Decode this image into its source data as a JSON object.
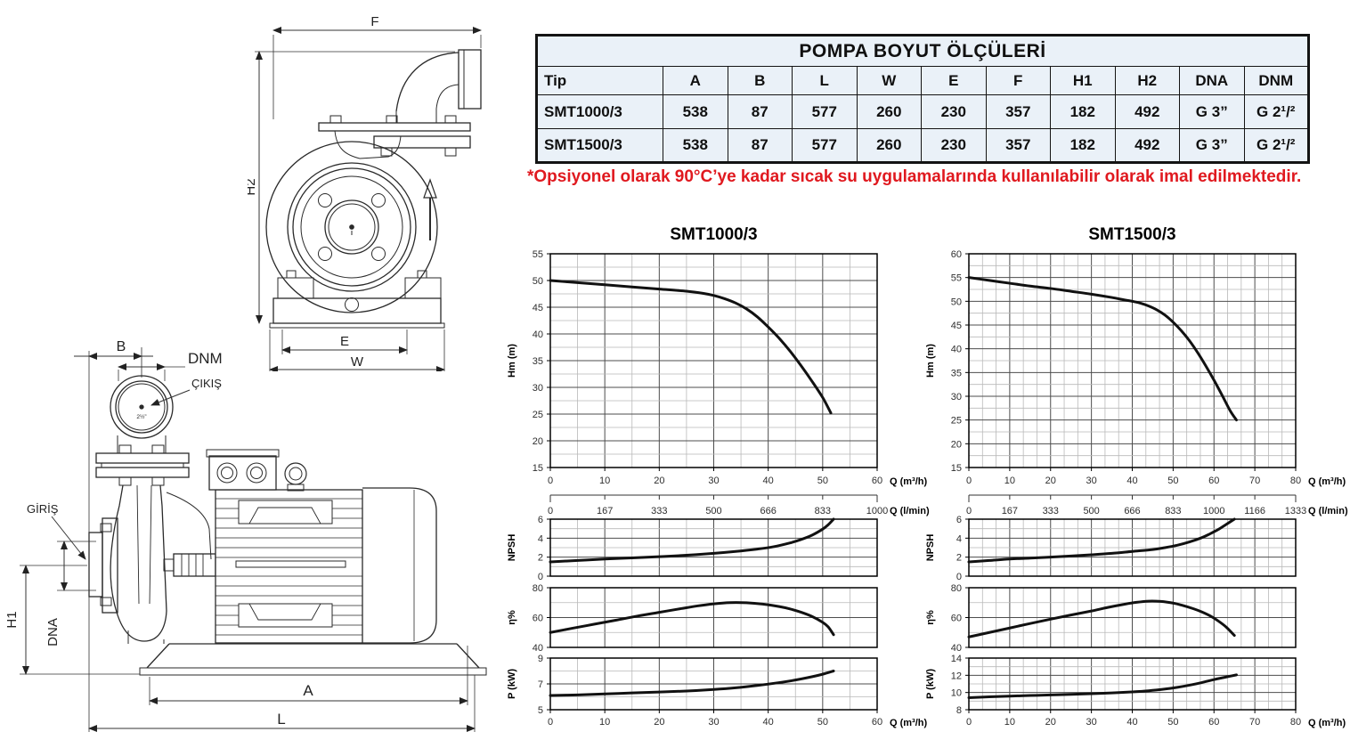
{
  "colors": {
    "ink": "#1a1a1a",
    "curve": "#111111",
    "grid_major": "#4d4d4d",
    "grid_minor": "#b9b9b9",
    "note_red": "#e0191f",
    "table_bg": "#eaf1f8"
  },
  "table": {
    "title": "POMPA BOYUT ÖLÇÜLERİ",
    "columns": [
      "Tip",
      "A",
      "B",
      "L",
      "W",
      "E",
      "F",
      "H1",
      "H2",
      "DNA",
      "DNM"
    ],
    "rows": [
      [
        "SMT1000/3",
        "538",
        "87",
        "577",
        "260",
        "230",
        "357",
        "182",
        "492",
        "G 3”",
        "G 2¹/²"
      ],
      [
        "SMT1500/3",
        "538",
        "87",
        "577",
        "260",
        "230",
        "357",
        "182",
        "492",
        "G 3”",
        "G 2¹/²"
      ]
    ]
  },
  "note": "*Opsiyonel olarak 90°C’ye kadar sıcak su uygulamalarında kullanılabilir olarak imal edilmektedir.",
  "drawing": {
    "front": {
      "f": "F",
      "h2": "H2",
      "e": "E",
      "w": "W"
    },
    "side": {
      "b": "B",
      "dnm": "DNM",
      "cikis": "ÇIKIŞ",
      "giris": "GİRİŞ",
      "h1": "H1",
      "dna": "DNA",
      "a": "A",
      "l": "L",
      "port_size": "2½”"
    }
  },
  "chart_data": [
    {
      "type": "line",
      "title": "SMT1000/3",
      "x_axis": {
        "label": "Q (m³/h)",
        "min": 0,
        "max": 60,
        "major": 10,
        "minor_div": 2
      },
      "x2_axis": {
        "label": "Q (l/min)",
        "labels": [
          0,
          167,
          333,
          500,
          666,
          833,
          1000
        ]
      },
      "subplots": [
        {
          "id": "head",
          "ylabel": "Hm  (m)",
          "ymin": 15,
          "ymax": 55,
          "ymajor": 5,
          "points": [
            [
              0,
              50
            ],
            [
              5,
              49.6
            ],
            [
              10,
              49.2
            ],
            [
              15,
              48.8
            ],
            [
              20,
              48.4
            ],
            [
              25,
              48
            ],
            [
              28,
              47.6
            ],
            [
              30,
              47.2
            ],
            [
              32,
              46.6
            ],
            [
              34,
              45.8
            ],
            [
              36,
              44.7
            ],
            [
              38,
              43.2
            ],
            [
              40,
              41.3
            ],
            [
              42,
              39.2
            ],
            [
              44,
              36.8
            ],
            [
              46,
              34.1
            ],
            [
              48,
              31.2
            ],
            [
              50,
              28.1
            ],
            [
              51.5,
              25.2
            ]
          ]
        },
        {
          "id": "npsh",
          "ylabel": "NPSH",
          "ymin": 0,
          "ymax": 6,
          "ymajor": 2,
          "points": [
            [
              0,
              1.5
            ],
            [
              5,
              1.65
            ],
            [
              10,
              1.8
            ],
            [
              15,
              1.92
            ],
            [
              20,
              2.05
            ],
            [
              25,
              2.2
            ],
            [
              30,
              2.4
            ],
            [
              34,
              2.6
            ],
            [
              38,
              2.85
            ],
            [
              41,
              3.1
            ],
            [
              44,
              3.5
            ],
            [
              46,
              3.85
            ],
            [
              48,
              4.3
            ],
            [
              50,
              4.95
            ],
            [
              51,
              5.4
            ],
            [
              52,
              6
            ]
          ]
        },
        {
          "id": "eff",
          "ylabel": "η%",
          "ymin": 40,
          "ymax": 80,
          "ymajor": 20,
          "points": [
            [
              0,
              50
            ],
            [
              4,
              52.8
            ],
            [
              8,
              55.5
            ],
            [
              12,
              58.2
            ],
            [
              16,
              61
            ],
            [
              20,
              63.5
            ],
            [
              24,
              66
            ],
            [
              27,
              67.8
            ],
            [
              30,
              69.2
            ],
            [
              33,
              70
            ],
            [
              36,
              69.9
            ],
            [
              39,
              69
            ],
            [
              42,
              67.4
            ],
            [
              44,
              65.8
            ],
            [
              46,
              63.6
            ],
            [
              48,
              60.8
            ],
            [
              50,
              56.8
            ],
            [
              51,
              53.8
            ],
            [
              52,
              48.5
            ]
          ]
        },
        {
          "id": "power",
          "ylabel": "P  (kW)",
          "ymin": 5,
          "ymax": 9,
          "ymajor": 2,
          "points": [
            [
              0,
              6.1
            ],
            [
              5,
              6.15
            ],
            [
              10,
              6.22
            ],
            [
              15,
              6.3
            ],
            [
              20,
              6.37
            ],
            [
              25,
              6.45
            ],
            [
              30,
              6.57
            ],
            [
              34,
              6.7
            ],
            [
              38,
              6.88
            ],
            [
              42,
              7.1
            ],
            [
              45,
              7.3
            ],
            [
              48,
              7.55
            ],
            [
              50,
              7.75
            ],
            [
              52,
              8
            ]
          ]
        }
      ]
    },
    {
      "type": "line",
      "title": "SMT1500/3",
      "x_axis": {
        "label": "Q (m³/h)",
        "min": 0,
        "max": 80,
        "major": 10,
        "minor_div": 3
      },
      "x2_axis": {
        "label": "Q (l/min)",
        "labels": [
          0,
          167,
          333,
          500,
          666,
          833,
          1000,
          1166,
          1333
        ]
      },
      "subplots": [
        {
          "id": "head",
          "ylabel": "Hm  (m)",
          "ymin": 15,
          "ymax": 60,
          "ymajor": 5,
          "points": [
            [
              0,
              55
            ],
            [
              5,
              54.4
            ],
            [
              10,
              53.8
            ],
            [
              15,
              53.2
            ],
            [
              20,
              52.7
            ],
            [
              25,
              52.1
            ],
            [
              30,
              51.5
            ],
            [
              35,
              50.8
            ],
            [
              38,
              50.3
            ],
            [
              40,
              50
            ],
            [
              42,
              49.6
            ],
            [
              44,
              49
            ],
            [
              46,
              48.2
            ],
            [
              48,
              47.1
            ],
            [
              50,
              45.6
            ],
            [
              52,
              43.8
            ],
            [
              54,
              41.7
            ],
            [
              56,
              39.2
            ],
            [
              58,
              36.4
            ],
            [
              60,
              33.4
            ],
            [
              62,
              30.2
            ],
            [
              64,
              26.9
            ],
            [
              65.5,
              25
            ]
          ]
        },
        {
          "id": "npsh",
          "ylabel": "NPSH",
          "ymin": 0,
          "ymax": 6,
          "ymajor": 2,
          "points": [
            [
              0,
              1.5
            ],
            [
              5,
              1.65
            ],
            [
              10,
              1.8
            ],
            [
              15,
              1.9
            ],
            [
              20,
              2
            ],
            [
              25,
              2.12
            ],
            [
              30,
              2.25
            ],
            [
              35,
              2.4
            ],
            [
              40,
              2.6
            ],
            [
              45,
              2.8
            ],
            [
              48,
              3
            ],
            [
              51,
              3.25
            ],
            [
              54,
              3.6
            ],
            [
              57,
              4.05
            ],
            [
              59,
              4.45
            ],
            [
              61,
              4.9
            ],
            [
              63,
              5.45
            ],
            [
              65,
              6
            ]
          ]
        },
        {
          "id": "eff",
          "ylabel": "η%",
          "ymin": 40,
          "ymax": 80,
          "ymajor": 20,
          "points": [
            [
              0,
              47
            ],
            [
              5,
              50
            ],
            [
              10,
              53
            ],
            [
              15,
              56
            ],
            [
              20,
              58.9
            ],
            [
              25,
              61.7
            ],
            [
              30,
              64.4
            ],
            [
              34,
              66.8
            ],
            [
              38,
              68.9
            ],
            [
              41,
              70.2
            ],
            [
              44,
              71
            ],
            [
              47,
              70.8
            ],
            [
              50,
              69.7
            ],
            [
              52,
              68.4
            ],
            [
              55,
              65.9
            ],
            [
              57,
              63.8
            ],
            [
              59,
              61.2
            ],
            [
              61,
              57.8
            ],
            [
              63,
              53.6
            ],
            [
              65,
              48
            ]
          ]
        },
        {
          "id": "power",
          "ylabel": "P  (kW)",
          "ymin": 8,
          "ymax": 14,
          "ymajor": 2,
          "points": [
            [
              0,
              9.4
            ],
            [
              5,
              9.5
            ],
            [
              10,
              9.58
            ],
            [
              15,
              9.65
            ],
            [
              20,
              9.72
            ],
            [
              25,
              9.78
            ],
            [
              30,
              9.86
            ],
            [
              35,
              9.95
            ],
            [
              40,
              10.07
            ],
            [
              44,
              10.2
            ],
            [
              48,
              10.4
            ],
            [
              51,
              10.6
            ],
            [
              54,
              10.85
            ],
            [
              57,
              11.15
            ],
            [
              60,
              11.5
            ],
            [
              63,
              11.8
            ],
            [
              65.5,
              12.05
            ]
          ]
        }
      ]
    }
  ]
}
